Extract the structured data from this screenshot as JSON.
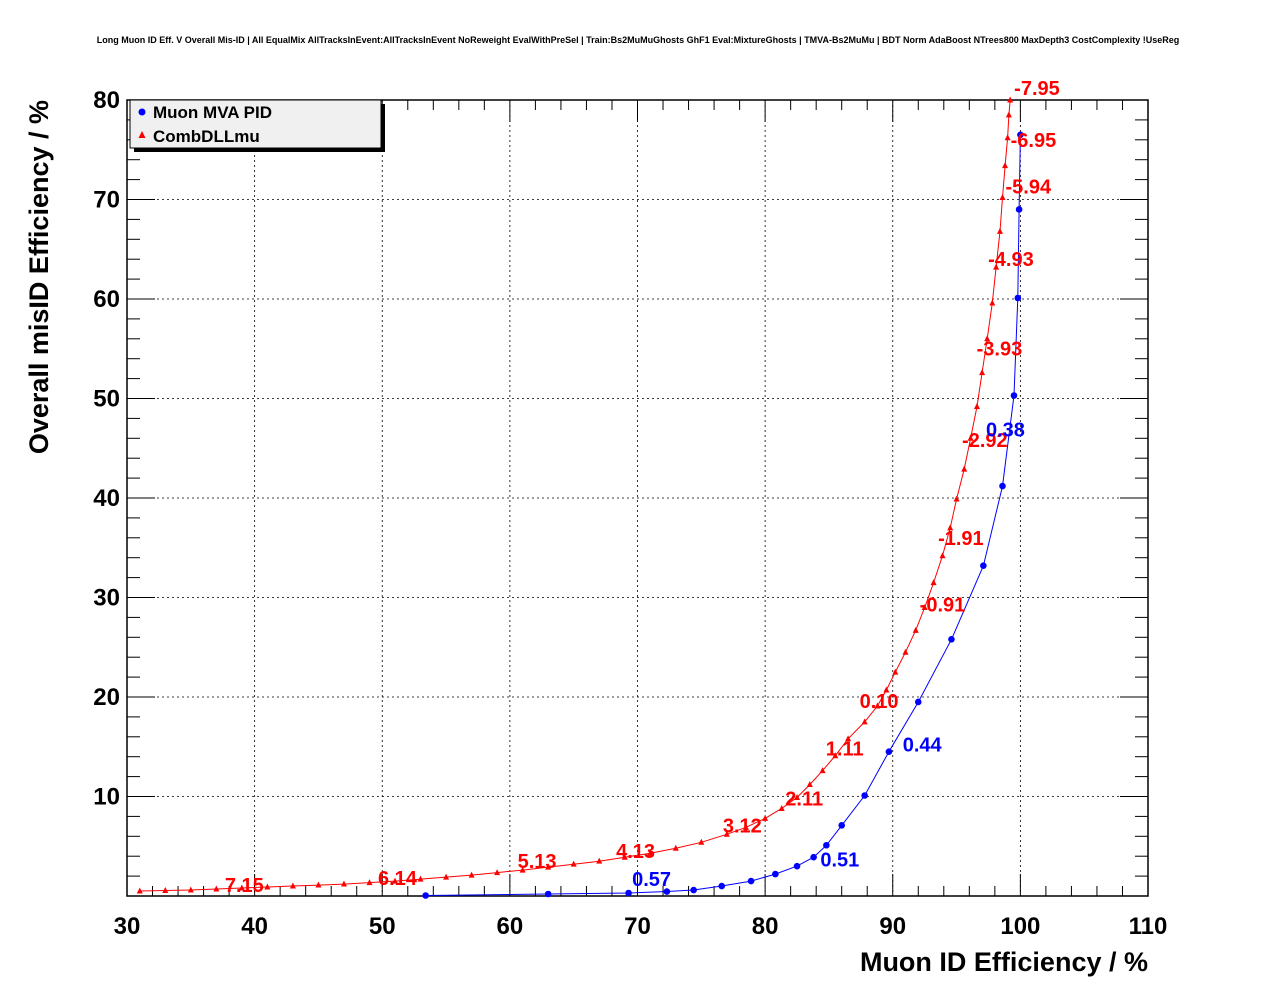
{
  "chart_data": {
    "type": "line",
    "title": "Long Muon ID Eff. V Overall Mis-ID | All EqualMix AllTracksInEvent:AllTracksInEvent NoReweight EvalWithPreSel | Train:Bs2MuMuGhosts GhF1 Eval:MixtureGhosts | TMVA-Bs2MuMu | BDT Norm AdaBoost NTrees800 MaxDepth3 CostComplexity !UseReg",
    "xlabel": "Muon ID Efficiency / %",
    "ylabel": "Overall misID Efficiency / %",
    "xlim": [
      30,
      110
    ],
    "ylim": [
      0,
      80
    ],
    "x_ticks": [
      30,
      40,
      50,
      60,
      70,
      80,
      90,
      100,
      110
    ],
    "y_ticks": [
      10,
      20,
      30,
      40,
      50,
      60,
      70,
      80
    ],
    "grid": true,
    "legend_position": "top-left",
    "series": [
      {
        "name": "Muon MVA PID",
        "color": "#0000ff",
        "marker": "circle",
        "x": [
          53.4,
          63.0,
          69.3,
          72.3,
          74.4,
          76.6,
          78.9,
          80.8,
          82.5,
          83.8,
          84.8,
          86.0,
          87.8,
          89.7,
          92.0,
          94.6,
          97.1,
          98.6,
          99.5,
          99.8,
          99.9,
          100.0
        ],
        "y": [
          0.05,
          0.2,
          0.3,
          0.45,
          0.6,
          1.0,
          1.5,
          2.2,
          3.0,
          3.9,
          5.1,
          7.1,
          10.1,
          14.5,
          19.5,
          25.8,
          33.2,
          41.2,
          50.3,
          60.1,
          69.0,
          76.5
        ]
      },
      {
        "name": "CombDLLmu",
        "color": "#ff0000",
        "marker": "triangle",
        "x": [
          31.0,
          33.0,
          35.0,
          37.0,
          39.0,
          41.0,
          43.0,
          45.0,
          47.0,
          49.0,
          51.0,
          53.0,
          55.0,
          57.0,
          59.0,
          61.0,
          63.0,
          65.0,
          67.0,
          69.0,
          71.0,
          73.0,
          75.0,
          77.0,
          78.5,
          80.0,
          81.3,
          82.5,
          83.5,
          84.5,
          85.5,
          86.5,
          87.8,
          88.8,
          89.5,
          90.2,
          91.0,
          91.8,
          92.5,
          93.2,
          93.9,
          94.5,
          95.0,
          95.6,
          96.1,
          96.6,
          97.0,
          97.4,
          97.8,
          98.1,
          98.4,
          98.6,
          98.8,
          99.0,
          99.1,
          99.2
        ],
        "y": [
          0.5,
          0.55,
          0.6,
          0.7,
          0.8,
          0.9,
          1.0,
          1.1,
          1.2,
          1.35,
          1.5,
          1.7,
          1.9,
          2.1,
          2.35,
          2.6,
          2.9,
          3.2,
          3.5,
          3.9,
          4.3,
          4.8,
          5.4,
          6.2,
          6.9,
          7.8,
          8.8,
          9.9,
          11.2,
          12.6,
          14.1,
          15.8,
          17.5,
          19.1,
          20.7,
          22.5,
          24.5,
          26.7,
          29.0,
          31.5,
          34.2,
          37.0,
          39.9,
          42.9,
          46.0,
          49.2,
          52.6,
          56.0,
          59.6,
          63.2,
          66.8,
          70.2,
          73.4,
          76.2,
          78.5,
          80.0
        ]
      }
    ],
    "annotations": [
      {
        "text": "7.15",
        "series": "CombDLLmu",
        "x": 39.0,
        "y": 0.8
      },
      {
        "text": "6.14",
        "series": "CombDLLmu",
        "x": 51.0,
        "y": 1.5
      },
      {
        "text": "5.13",
        "series": "CombDLLmu",
        "x": 61.0,
        "y": 2.6
      },
      {
        "text": "4.13",
        "series": "CombDLLmu",
        "x": 69.5,
        "y": 4.0
      },
      {
        "text": "3.12",
        "series": "CombDLLmu",
        "x": 77.0,
        "y": 6.2
      },
      {
        "text": "2.11",
        "series": "CombDLLmu",
        "x": 81.5,
        "y": 8.9
      },
      {
        "text": "1.11",
        "series": "CombDLLmu",
        "x": 85.3,
        "y": 13.8
      },
      {
        "text": "0.10",
        "series": "CombDLLmu",
        "x": 88.5,
        "y": 18.5
      },
      {
        "text": "-0.91",
        "series": "CombDLLmu",
        "x": 92.5,
        "y": 29.0
      },
      {
        "text": "-1.91",
        "series": "CombDLLmu",
        "x": 94.1,
        "y": 35.0
      },
      {
        "text": "-2.92",
        "series": "CombDLLmu",
        "x": 95.9,
        "y": 44.6
      },
      {
        "text": "-3.93",
        "series": "CombDLLmu",
        "x": 97.2,
        "y": 54.2
      },
      {
        "text": "-4.93",
        "series": "CombDLLmu",
        "x": 98.1,
        "y": 63.0
      },
      {
        "text": "-5.94",
        "series": "CombDLLmu",
        "x": 98.6,
        "y": 70.0
      },
      {
        "text": "-6.95",
        "series": "CombDLLmu",
        "x": 99.0,
        "y": 75.0
      },
      {
        "text": "-7.95",
        "series": "CombDLLmu",
        "x": 99.2,
        "y": 80.0
      },
      {
        "text": "0.57",
        "series": "Muon MVA PID",
        "x": 69.5,
        "y": 0.3
      },
      {
        "text": "0.51",
        "series": "Muon MVA PID",
        "x": 84.8,
        "y": 5.1
      },
      {
        "text": "0.44",
        "series": "Muon MVA PID",
        "x": 90.0,
        "y": 14.5
      },
      {
        "text": "0.38",
        "series": "Muon MVA PID",
        "x": 99.5,
        "y": 50.3
      }
    ]
  }
}
